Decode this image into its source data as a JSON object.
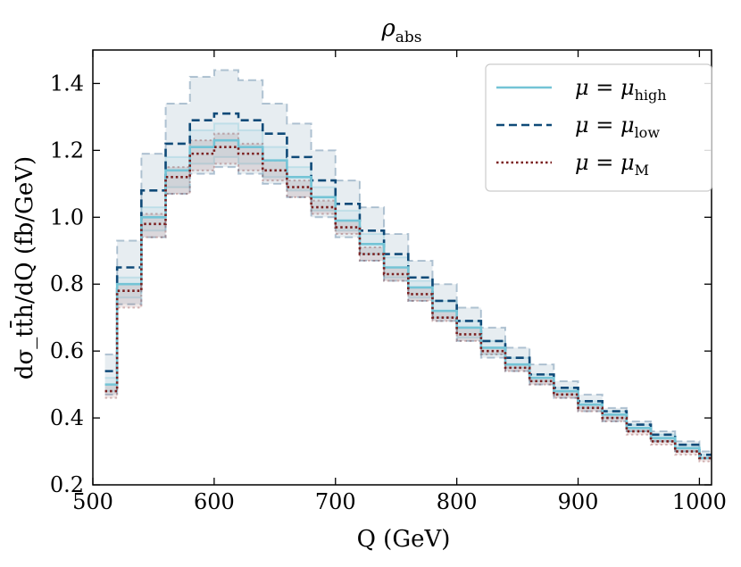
{
  "chart_data": {
    "type": "step",
    "title": "ρ_abs",
    "title_main": "ρ",
    "title_sub": "abs",
    "xlabel": "Q (GeV)",
    "ylabel": "dσ_tt̄h/dQ (fb/GeV)",
    "xlim": [
      500,
      1010
    ],
    "ylim": [
      0.2,
      1.5
    ],
    "x_ticks": [
      500,
      600,
      700,
      800,
      900,
      1000
    ],
    "y_ticks": [
      0.2,
      0.4,
      0.6,
      0.8,
      1.0,
      1.2,
      1.4
    ],
    "x_tick_labels": [
      "500",
      "600",
      "700",
      "800",
      "900",
      "1000"
    ],
    "y_tick_labels": [
      "0.2",
      "0.4",
      "0.6",
      "0.8",
      "1.0",
      "1.2",
      "1.4"
    ],
    "bin_edges": [
      510,
      520,
      540,
      560,
      580,
      600,
      620,
      640,
      660,
      680,
      700,
      720,
      740,
      760,
      780,
      800,
      820,
      840,
      860,
      880,
      900,
      920,
      940,
      960,
      980,
      1000,
      1010
    ],
    "series": [
      {
        "name": "μ = μ_high",
        "legend_main": "μ = μ",
        "legend_sub": "high",
        "style": "solid",
        "color": "#74c4d6",
        "values": [
          0.5,
          0.8,
          1.0,
          1.14,
          1.21,
          1.23,
          1.21,
          1.17,
          1.12,
          1.06,
          0.99,
          0.92,
          0.85,
          0.79,
          0.72,
          0.67,
          0.61,
          0.56,
          0.52,
          0.48,
          0.44,
          0.41,
          0.37,
          0.34,
          0.31,
          0.28
        ],
        "band_low": [
          0.48,
          0.76,
          0.96,
          1.09,
          1.16,
          1.18,
          1.16,
          1.12,
          1.08,
          1.02,
          0.96,
          0.89,
          0.82,
          0.76,
          0.7,
          0.64,
          0.59,
          0.55,
          0.51,
          0.47,
          0.43,
          0.4,
          0.36,
          0.33,
          0.3,
          0.28
        ],
        "band_high": [
          0.52,
          0.82,
          1.03,
          1.18,
          1.26,
          1.28,
          1.26,
          1.21,
          1.15,
          1.09,
          1.02,
          0.95,
          0.88,
          0.81,
          0.75,
          0.69,
          0.63,
          0.58,
          0.53,
          0.49,
          0.45,
          0.42,
          0.38,
          0.35,
          0.32,
          0.29
        ]
      },
      {
        "name": "μ = μ_low",
        "legend_main": "μ = μ",
        "legend_sub": "low",
        "style": "dashed",
        "color": "#0f4a78",
        "values": [
          0.54,
          0.85,
          1.08,
          1.22,
          1.29,
          1.31,
          1.29,
          1.25,
          1.18,
          1.11,
          1.04,
          0.96,
          0.89,
          0.82,
          0.75,
          0.69,
          0.63,
          0.58,
          0.53,
          0.49,
          0.45,
          0.42,
          0.38,
          0.35,
          0.32,
          0.29
        ],
        "band_low": [
          0.47,
          0.74,
          0.94,
          1.07,
          1.13,
          1.15,
          1.13,
          1.1,
          1.06,
          1.0,
          0.94,
          0.87,
          0.81,
          0.75,
          0.69,
          0.63,
          0.58,
          0.54,
          0.5,
          0.46,
          0.42,
          0.39,
          0.36,
          0.33,
          0.3,
          0.28
        ],
        "band_high": [
          0.59,
          0.93,
          1.19,
          1.34,
          1.42,
          1.44,
          1.41,
          1.34,
          1.28,
          1.2,
          1.11,
          1.03,
          0.95,
          0.87,
          0.8,
          0.73,
          0.67,
          0.61,
          0.56,
          0.51,
          0.47,
          0.43,
          0.39,
          0.36,
          0.33,
          0.3
        ]
      },
      {
        "name": "μ = μ_M",
        "legend_main": "μ = μ",
        "legend_sub": "M",
        "style": "dotted",
        "color": "#7a1f1f",
        "values": [
          0.48,
          0.78,
          0.98,
          1.12,
          1.19,
          1.21,
          1.19,
          1.14,
          1.09,
          1.03,
          0.97,
          0.89,
          0.83,
          0.77,
          0.7,
          0.65,
          0.6,
          0.55,
          0.51,
          0.47,
          0.43,
          0.4,
          0.36,
          0.33,
          0.3,
          0.28
        ],
        "band_low": [
          0.46,
          0.73,
          0.94,
          1.07,
          1.14,
          1.16,
          1.14,
          1.11,
          1.06,
          1.01,
          0.95,
          0.87,
          0.81,
          0.75,
          0.69,
          0.63,
          0.59,
          0.54,
          0.5,
          0.46,
          0.42,
          0.39,
          0.35,
          0.32,
          0.29,
          0.27
        ],
        "band_high": [
          0.5,
          0.8,
          1.01,
          1.15,
          1.23,
          1.25,
          1.22,
          1.17,
          1.11,
          1.05,
          0.99,
          0.91,
          0.85,
          0.79,
          0.72,
          0.67,
          0.61,
          0.56,
          0.52,
          0.48,
          0.44,
          0.41,
          0.37,
          0.34,
          0.31,
          0.28
        ]
      }
    ],
    "legend_position": "top-right",
    "grid": false
  }
}
